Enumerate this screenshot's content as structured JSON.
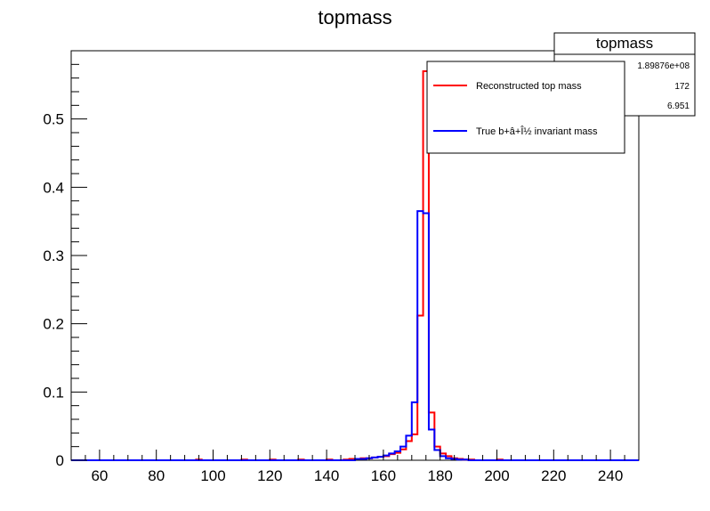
{
  "chart_data": {
    "type": "histogram",
    "title": "topmass",
    "xlabel": "",
    "ylabel": "",
    "xlim": [
      50,
      250
    ],
    "ylim": [
      0,
      0.6
    ],
    "x_ticks": [
      60,
      80,
      100,
      120,
      140,
      160,
      180,
      200,
      220,
      240
    ],
    "y_ticks": [
      0,
      0.1,
      0.2,
      0.3,
      0.4,
      0.5
    ],
    "y_tick_labels": [
      "0",
      "0.1",
      "0.2",
      "0.3",
      "0.4",
      "0.5"
    ],
    "bin_width": 2,
    "series": [
      {
        "name": "Reconstructed top mass",
        "color": "#ff0000",
        "bins": [
          [
            94,
            0.001
          ],
          [
            110,
            0.001
          ],
          [
            120,
            0.001
          ],
          [
            130,
            0.001
          ],
          [
            140,
            0.001
          ],
          [
            146,
            0.001
          ],
          [
            148,
            0.002
          ],
          [
            150,
            0.002
          ],
          [
            152,
            0.003
          ],
          [
            154,
            0.003
          ],
          [
            156,
            0.004
          ],
          [
            158,
            0.005
          ],
          [
            160,
            0.006
          ],
          [
            162,
            0.009
          ],
          [
            164,
            0.011
          ],
          [
            166,
            0.016
          ],
          [
            168,
            0.028
          ],
          [
            170,
            0.038
          ],
          [
            172,
            0.212
          ],
          [
            174,
            0.57
          ],
          [
            176,
            0.07
          ],
          [
            178,
            0.02
          ],
          [
            180,
            0.01
          ],
          [
            182,
            0.006
          ],
          [
            184,
            0.003
          ],
          [
            186,
            0.002
          ],
          [
            188,
            0.001
          ],
          [
            190,
            0.001
          ],
          [
            200,
            0.001
          ]
        ]
      },
      {
        "name": "True b+â+Î½ invariant mass",
        "color": "#0000ff",
        "bins": [
          [
            150,
            0.002
          ],
          [
            152,
            0.002
          ],
          [
            154,
            0.003
          ],
          [
            156,
            0.004
          ],
          [
            158,
            0.005
          ],
          [
            160,
            0.007
          ],
          [
            162,
            0.01
          ],
          [
            164,
            0.013
          ],
          [
            166,
            0.02
          ],
          [
            168,
            0.036
          ],
          [
            170,
            0.085
          ],
          [
            172,
            0.365
          ],
          [
            174,
            0.362
          ],
          [
            176,
            0.045
          ],
          [
            178,
            0.015
          ],
          [
            180,
            0.006
          ],
          [
            182,
            0.003
          ],
          [
            184,
            0.002
          ],
          [
            186,
            0.001
          ],
          [
            188,
            0.001
          ]
        ]
      }
    ]
  },
  "stats_box": {
    "title": "topmass",
    "entries": [
      "1.89876e+08",
      "172",
      "6.951"
    ]
  },
  "legend": {
    "items": [
      "Reconstructed top mass",
      "True b+â+Î½ invariant mass"
    ],
    "colors": [
      "#ff0000",
      "#0000ff"
    ]
  }
}
